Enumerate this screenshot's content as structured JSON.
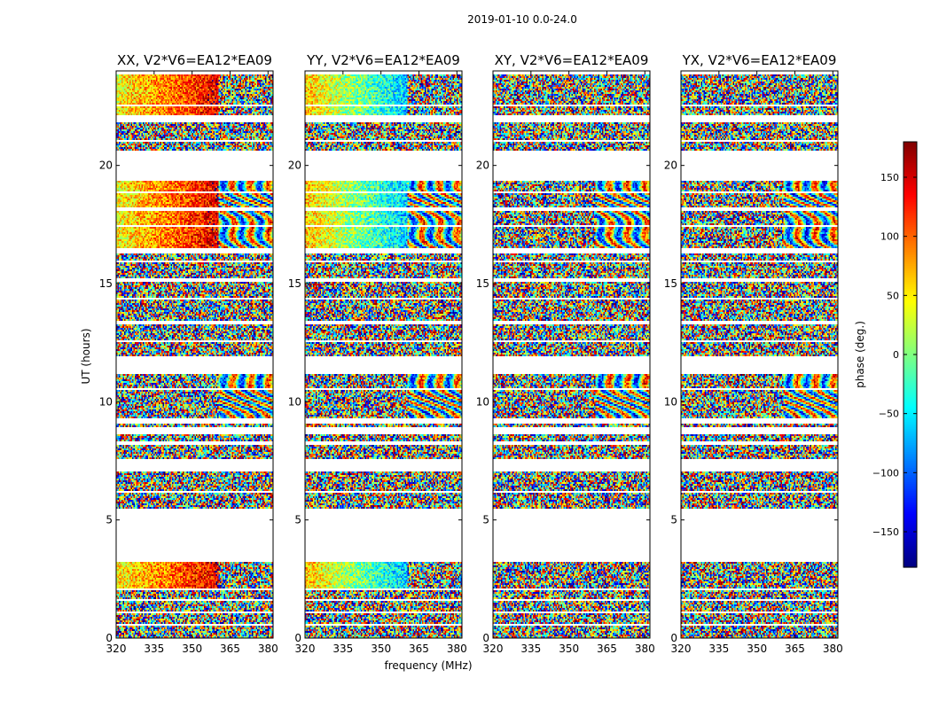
{
  "suptitle": "2019-01-10 0.0-24.0",
  "chart_data": {
    "type": "heatmap",
    "title": "2019-01-10 0.0-24.0",
    "xlabel": "frequency (MHz)",
    "ylabel": "UT (hours)",
    "xlim": [
      320,
      382
    ],
    "ylim": [
      0,
      24
    ],
    "xticks": [
      320,
      335,
      350,
      365,
      380
    ],
    "yticks": [
      0,
      5,
      10,
      15,
      20
    ],
    "panels": [
      {
        "title": "XX, V2*V6=EA12*EA09",
        "polarization": "XX",
        "ramp_direction": 1
      },
      {
        "title": "YY, V2*V6=EA12*EA09",
        "polarization": "YY",
        "ramp_direction": -1
      },
      {
        "title": "XY, V2*V6=EA12*EA09",
        "polarization": "XY",
        "ramp_direction": 0
      },
      {
        "title": "YX, V2*V6=EA12*EA09",
        "polarization": "YX",
        "ramp_direction": 0
      }
    ],
    "colorbar": {
      "label": "phase (deg.)",
      "vmin": -180,
      "vmax": 180,
      "ticks": [
        -150,
        -100,
        -50,
        0,
        50,
        100,
        150
      ],
      "colormap": "jet"
    },
    "data_segments_ut": [
      [
        0.0,
        0.55
      ],
      [
        0.62,
        1.05
      ],
      [
        1.1,
        1.55
      ],
      [
        1.62,
        2.05
      ],
      [
        2.12,
        2.52
      ],
      [
        2.58,
        3.25
      ],
      [
        5.5,
        6.15
      ],
      [
        6.2,
        7.05
      ],
      [
        7.6,
        8.2
      ],
      [
        8.3,
        8.6
      ],
      [
        8.9,
        9.05
      ],
      [
        9.3,
        10.5
      ],
      [
        10.6,
        11.15
      ],
      [
        11.9,
        12.5
      ],
      [
        12.6,
        13.3
      ],
      [
        13.4,
        14.3
      ],
      [
        14.4,
        15.1
      ],
      [
        15.2,
        15.9
      ],
      [
        16.0,
        16.25
      ],
      [
        16.5,
        17.4
      ],
      [
        17.5,
        18.05
      ],
      [
        18.2,
        18.8
      ],
      [
        18.9,
        19.35
      ],
      [
        20.6,
        21.0
      ],
      [
        21.1,
        21.85
      ],
      [
        22.1,
        22.5
      ],
      [
        22.6,
        23.85
      ]
    ],
    "coherent_segments_ut": [
      [
        16.5,
        19.35
      ],
      [
        22.1,
        23.85
      ],
      [
        2.12,
        3.25
      ]
    ],
    "fringe_band_mhz": [
      360,
      382
    ]
  }
}
